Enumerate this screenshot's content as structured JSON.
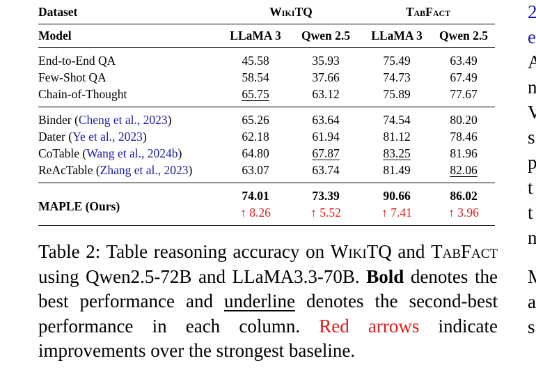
{
  "table": {
    "dataset_label": "Dataset",
    "model_label": "Model",
    "datasets": [
      "WikiTQ",
      "TabFact"
    ],
    "models": [
      "LLaMA 3",
      "Qwen 2.5",
      "LLaMA 3",
      "Qwen 2.5"
    ],
    "group1": [
      {
        "method": "End-to-End QA",
        "vals": [
          "45.58",
          "35.93",
          "75.49",
          "63.49"
        ]
      },
      {
        "method": "Few-Shot QA",
        "vals": [
          "58.54",
          "37.66",
          "74.73",
          "67.49"
        ]
      },
      {
        "method": "Chain-of-Thought",
        "vals": [
          "65.75",
          "63.12",
          "75.89",
          "77.67"
        ]
      }
    ],
    "group2": [
      {
        "method": "Binder",
        "cite": "Cheng et al., 2023",
        "vals": [
          "65.26",
          "63.64",
          "74.54",
          "80.20"
        ]
      },
      {
        "method": "Dater",
        "cite": "Ye et al., 2023",
        "vals": [
          "62.18",
          "61.94",
          "81.12",
          "78.46"
        ]
      },
      {
        "method": "CoTable",
        "cite": "Wang et al., 2024b",
        "vals": [
          "64.80",
          "67.87",
          "83.25",
          "81.96"
        ]
      },
      {
        "method": "ReAcTable",
        "cite": "Zhang et al., 2023",
        "vals": [
          "63.07",
          "63.74",
          "81.49",
          "82.06"
        ]
      }
    ],
    "maple": {
      "method": "MAPLE (Ours)",
      "vals": [
        "74.01",
        "73.39",
        "90.66",
        "86.02"
      ],
      "improvements": [
        "↑ 8.26",
        "↑ 5.52",
        "↑ 7.41",
        "↑ 3.96"
      ]
    }
  },
  "caption": {
    "prefix": "Table 2: Table reasoning accuracy on",
    "ds1": "WikiTQ",
    "and1": "and",
    "ds2": "TabFact",
    "using": "using Qwen2.5-72B and LLaMA3.3-70B.",
    "bold": "Bold",
    "denotes1": "denotes the best performance and",
    "underline": "underline",
    "denotes2": "denotes the second-best performance in each column.",
    "red": "Red arrows",
    "rest": "indicate improvements over the strongest baseline."
  },
  "side_text": [
    "2",
    "e",
    "A",
    "n",
    "V",
    "s",
    "p",
    "t",
    "t",
    "n",
    "",
    "M",
    "a",
    "s"
  ],
  "colors": {
    "citation": "#1a1aa6",
    "improvement": "#e0191b"
  }
}
